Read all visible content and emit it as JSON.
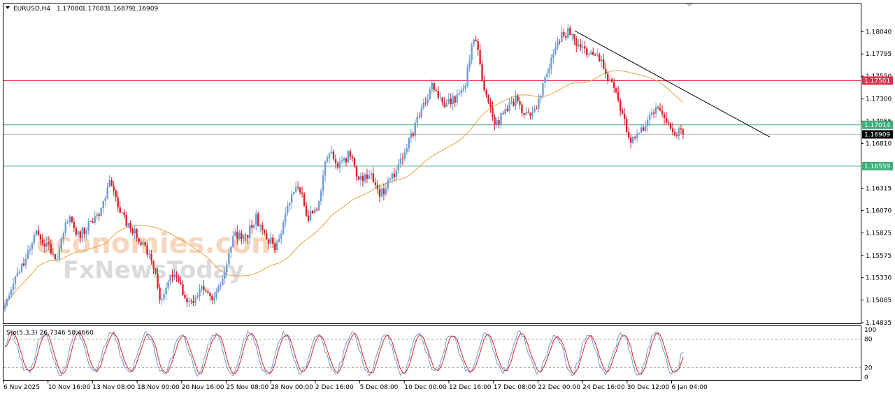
{
  "chart_data": {
    "type": "candlestick",
    "header": {
      "symbol": "EURUSD,H4",
      "open": "1.17080",
      "high": "1.17083",
      "low": "1.16879",
      "close": "1.16909"
    },
    "price_axis": {
      "ylim": [
        1.14835,
        1.1822
      ],
      "ticks": [
        "1.18040",
        "1.17795",
        "1.17550",
        "1.17300",
        "1.17055",
        "1.16810",
        "1.16315",
        "1.16070",
        "1.15825",
        "1.15575",
        "1.15330",
        "1.15085",
        "1.14835"
      ]
    },
    "levels": [
      {
        "price": 1.17501,
        "label": "1.17501",
        "color": "#e0304a"
      },
      {
        "price": 1.17014,
        "label": "1.17014",
        "color": "#3ab07a"
      },
      {
        "price": 1.16559,
        "label": "1.16559",
        "color": "#3ab07a"
      },
      {
        "price": 1.16909,
        "label": "1.16909",
        "color": "#000000",
        "current": true
      }
    ],
    "trendline": {
      "from": [
        "22 Dec 16:00",
        1.1805
      ],
      "to": [
        "8 Jan 08:00",
        1.1688
      ]
    },
    "time_axis": [
      "6 Nov 2025",
      "10 Nov 16:00",
      "13 Nov 08:00",
      "18 Nov 00:00",
      "20 Nov 16:00",
      "25 Nov 08:00",
      "28 Nov 00:00",
      "2 Dec 16:00",
      "5 Dec 08:00",
      "10 Dec 00:00",
      "12 Dec 16:00",
      "17 Dec 08:00",
      "22 Dec 00:00",
      "24 Dec 16:00",
      "30 Dec 12:00",
      "6 Jan 04:00"
    ],
    "price_path": [
      1.15,
      1.153,
      1.1555,
      1.1585,
      1.157,
      1.1555,
      1.16,
      1.158,
      1.159,
      1.16,
      1.164,
      1.1605,
      1.159,
      1.1575,
      1.1555,
      1.1505,
      1.154,
      1.152,
      1.15,
      1.1525,
      1.151,
      1.154,
      1.158,
      1.1575,
      1.16,
      1.158,
      1.1565,
      1.161,
      1.164,
      1.16,
      1.161,
      1.1675,
      1.1655,
      1.167,
      1.164,
      1.165,
      1.1625,
      1.164,
      1.1665,
      1.169,
      1.172,
      1.1745,
      1.172,
      1.173,
      1.174,
      1.18,
      1.174,
      1.17,
      1.172,
      1.173,
      1.171,
      1.1725,
      1.176,
      1.1795,
      1.1805,
      1.179,
      1.178,
      1.1775,
      1.175,
      1.172,
      1.168,
      1.1695,
      1.172,
      1.1715,
      1.1695,
      1.1691
    ],
    "ma_color": "#e8a33c",
    "bull_color": "#6f9ad8",
    "bear_color": "#d8232a",
    "stochastic": {
      "label": "Sto(5,3,3) 26.7346 58.4660",
      "ticks": [
        "100",
        "80",
        "20",
        "0"
      ],
      "levels": [
        80,
        20
      ],
      "main_color": "#6f9ad8",
      "signal_color": "#d8232a"
    }
  },
  "watermark": {
    "line1": "economies.com",
    "line2": "FxNewsToday"
  }
}
